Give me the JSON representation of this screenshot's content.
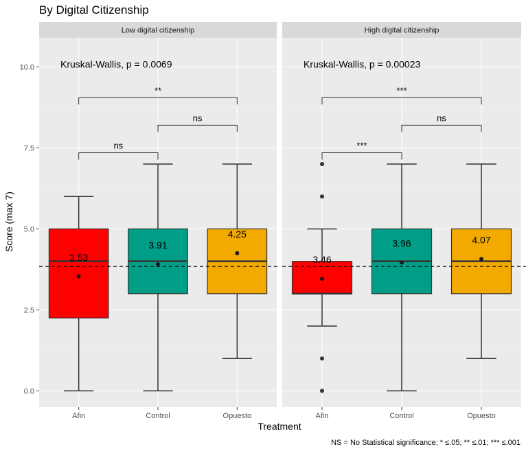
{
  "chart_data": {
    "type": "box",
    "title": "By Digital Citizenship",
    "xlabel": "Treatment",
    "ylabel": "Score (max 7)",
    "ylim": [
      -0.5,
      10.9
    ],
    "yticks": [
      0,
      2.5,
      5,
      7.5,
      10
    ],
    "ytick_labels": [
      "0.0",
      "2.5",
      "5.0",
      "7.5",
      "10.0"
    ],
    "categories": [
      "Afin",
      "Control",
      "Opuesto"
    ],
    "colors": {
      "Afin": "#ff0000",
      "Control": "#009e87",
      "Opuesto": "#f2a900"
    },
    "reference_line": 3.84,
    "caption": "NS = No Statistical significance; * ≤.05; ** ≤.01; *** ≤.001",
    "panels": [
      {
        "strip": "Low digital citizenship",
        "stat_label": "Kruskal-Wallis, p = 0.0069",
        "groups": [
          {
            "category": "Afin",
            "whisker_low": 0,
            "q1": 2.25,
            "median": 4,
            "q3": 5,
            "whisker_high": 6,
            "mean": 3.53,
            "mean_label": "3.53",
            "outliers": []
          },
          {
            "category": "Control",
            "whisker_low": 0,
            "q1": 3,
            "median": 4,
            "q3": 5,
            "whisker_high": 7,
            "mean": 3.91,
            "mean_label": "3.91",
            "outliers": []
          },
          {
            "category": "Opuesto",
            "whisker_low": 1,
            "q1": 3,
            "median": 4,
            "q3": 5,
            "whisker_high": 7,
            "mean": 4.25,
            "mean_label": "4.25",
            "outliers": []
          }
        ],
        "comparisons": [
          {
            "from": "Afin",
            "to": "Control",
            "y": 7.35,
            "label": "ns"
          },
          {
            "from": "Control",
            "to": "Opuesto",
            "y": 8.2,
            "label": "ns"
          },
          {
            "from": "Afin",
            "to": "Opuesto",
            "y": 9.05,
            "label": "**"
          }
        ]
      },
      {
        "strip": "High digital citizenship",
        "stat_label": "Kruskal-Wallis, p = 0.00023",
        "groups": [
          {
            "category": "Afin",
            "whisker_low": 2,
            "q1": 3,
            "median": 3,
            "q3": 4,
            "whisker_high": 5,
            "mean": 3.46,
            "mean_label": "3.46",
            "outliers": [
              0,
              1,
              6,
              7
            ]
          },
          {
            "category": "Control",
            "whisker_low": 0,
            "q1": 3,
            "median": 4,
            "q3": 5,
            "whisker_high": 7,
            "mean": 3.96,
            "mean_label": "3.96",
            "outliers": []
          },
          {
            "category": "Opuesto",
            "whisker_low": 1,
            "q1": 3,
            "median": 4,
            "q3": 5,
            "whisker_high": 7,
            "mean": 4.07,
            "mean_label": "4.07",
            "outliers": []
          }
        ],
        "comparisons": [
          {
            "from": "Afin",
            "to": "Control",
            "y": 7.35,
            "label": "***"
          },
          {
            "from": "Control",
            "to": "Opuesto",
            "y": 8.2,
            "label": "ns"
          },
          {
            "from": "Afin",
            "to": "Opuesto",
            "y": 9.05,
            "label": "***"
          }
        ]
      }
    ]
  }
}
